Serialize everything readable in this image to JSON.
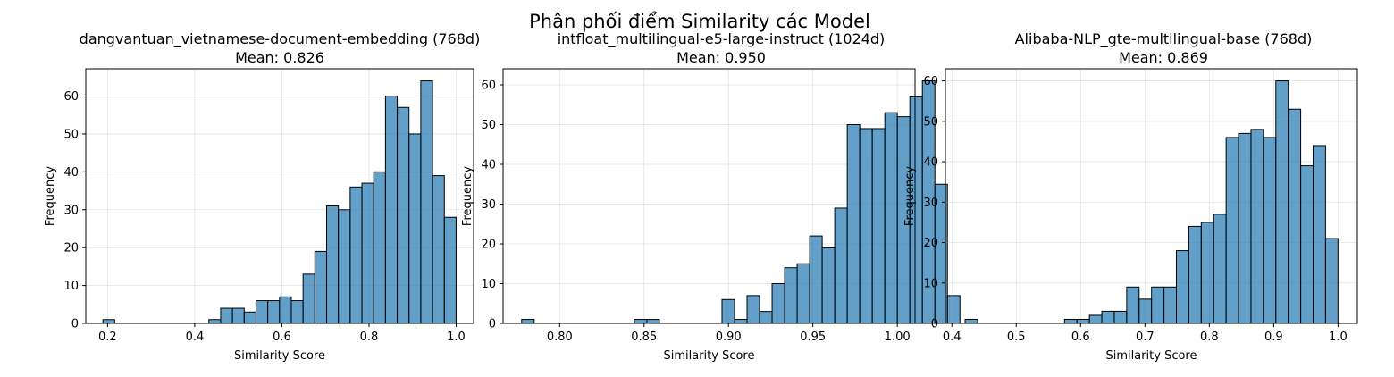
{
  "figure": {
    "suptitle": "Phân phối điểm Similarity các Model"
  },
  "chart_data": [
    {
      "type": "bar",
      "title": "dangvantuan_vietnamese-document-embedding (768d)",
      "subtitle": "Mean: 0.826",
      "xlabel": "Similarity Score",
      "ylabel": "Frequency",
      "xlim": [
        0.15,
        1.04
      ],
      "ylim": [
        0,
        67.2
      ],
      "xticks": [
        0.2,
        0.4,
        0.6,
        0.8,
        1.0
      ],
      "xtick_labels": [
        "0.2",
        "0.4",
        "0.6",
        "0.8",
        "1.0"
      ],
      "yticks": [
        0,
        10,
        20,
        30,
        40,
        50,
        60
      ],
      "grid": true,
      "bin_start": 0.1893,
      "bin_width": 0.02702,
      "values": [
        1,
        0,
        0,
        0,
        0,
        0,
        0,
        0,
        0,
        1,
        4,
        4,
        3,
        6,
        6,
        7,
        6,
        13,
        19,
        31,
        30,
        36,
        37,
        40,
        60,
        57,
        50,
        64,
        39,
        28
      ]
    },
    {
      "type": "bar",
      "title": "intfloat_multilingual-e5-large-instruct (1024d)",
      "subtitle": "Mean: 0.950",
      "xlabel": "Similarity Score",
      "ylabel": "Frequency",
      "xlim": [
        0.7665,
        1.0105
      ],
      "ylim": [
        0,
        64.05
      ],
      "xticks": [
        0.8,
        0.85,
        0.9,
        0.95,
        1.0
      ],
      "xtick_labels": [
        "0.80",
        "0.85",
        "0.90",
        "0.95",
        "1.00"
      ],
      "yticks": [
        0,
        10,
        20,
        30,
        40,
        50,
        60
      ],
      "grid": true,
      "bin_start": 0.7775,
      "bin_width": 0.007417,
      "values": [
        1,
        0,
        0,
        0,
        0,
        0,
        0,
        0,
        0,
        1,
        1,
        0,
        0,
        0,
        0,
        0,
        6,
        1,
        7,
        3,
        10,
        14,
        15,
        22,
        19,
        29,
        50,
        49,
        49,
        53,
        52,
        57,
        61,
        35,
        7,
        0,
        0,
        0,
        0,
        0
      ]
    },
    {
      "type": "bar",
      "title": "Alibaba-NLP_gte-multilingual-base (768d)",
      "subtitle": "Mean: 0.869",
      "xlabel": "Similarity Score",
      "ylabel": "Frequency",
      "xlim": [
        0.39,
        1.03
      ],
      "ylim": [
        0,
        63.0
      ],
      "xticks": [
        0.4,
        0.5,
        0.6,
        0.7,
        0.8,
        0.9,
        1.0
      ],
      "xtick_labels": [
        "0.4",
        "0.5",
        "0.6",
        "0.7",
        "0.8",
        "0.9",
        "1.0"
      ],
      "yticks": [
        0,
        10,
        20,
        30,
        40,
        50,
        60
      ],
      "grid": true,
      "bin_start": 0.4206,
      "bin_width": 0.01931,
      "values": [
        1,
        0,
        0,
        0,
        0,
        0,
        0,
        0,
        1,
        1,
        2,
        3,
        3,
        9,
        6,
        9,
        9,
        18,
        24,
        25,
        27,
        46,
        47,
        48,
        46,
        60,
        53,
        39,
        44,
        21
      ]
    }
  ],
  "colors": {
    "bar_fill": "#1f77b4",
    "bar_edge": "#000000",
    "grid": "#b0b0b0"
  }
}
